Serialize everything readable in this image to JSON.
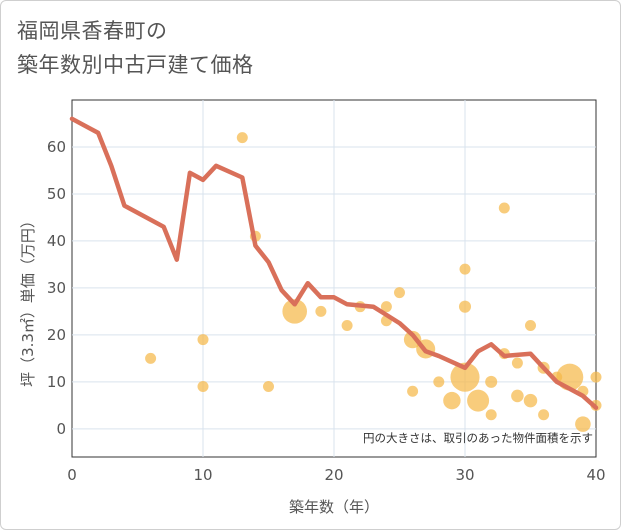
{
  "title_lines": [
    "福岡県香春町の",
    "築年数別中古戸建て価格"
  ],
  "chart_data": {
    "type": "scatter",
    "xlabel": "築年数（年）",
    "ylabel": "坪（3.3㎡）単価（万円）",
    "xlim": [
      0,
      40
    ],
    "ylim": [
      -6,
      70
    ],
    "xticks": [
      0,
      10,
      20,
      30,
      40
    ],
    "yticks": [
      0,
      10,
      20,
      30,
      40,
      50,
      60
    ],
    "note": "円の大きさは、取引のあった物件面積を示す",
    "colors": {
      "bubble": "#f5b84a",
      "line": "#d9705a",
      "grid": "#d9e3ee",
      "axis": "#333333"
    },
    "scatter": [
      {
        "x": 6,
        "y": 15,
        "s": 1
      },
      {
        "x": 10,
        "y": 19,
        "s": 1
      },
      {
        "x": 10,
        "y": 9,
        "s": 1
      },
      {
        "x": 13,
        "y": 62,
        "s": 1
      },
      {
        "x": 14,
        "y": 41,
        "s": 1
      },
      {
        "x": 15,
        "y": 9,
        "s": 1
      },
      {
        "x": 17,
        "y": 25,
        "s": 5
      },
      {
        "x": 19,
        "y": 25,
        "s": 1
      },
      {
        "x": 21,
        "y": 22,
        "s": 1
      },
      {
        "x": 22,
        "y": 26,
        "s": 1
      },
      {
        "x": 24,
        "y": 26,
        "s": 1
      },
      {
        "x": 24,
        "y": 23,
        "s": 1
      },
      {
        "x": 25,
        "y": 29,
        "s": 1
      },
      {
        "x": 26,
        "y": 19,
        "s": 2.5
      },
      {
        "x": 26,
        "y": 8,
        "s": 1
      },
      {
        "x": 27,
        "y": 17,
        "s": 3
      },
      {
        "x": 28,
        "y": 10,
        "s": 1
      },
      {
        "x": 29,
        "y": 6,
        "s": 2.5
      },
      {
        "x": 30,
        "y": 34,
        "s": 1
      },
      {
        "x": 30,
        "y": 26,
        "s": 1.2
      },
      {
        "x": 30,
        "y": 11,
        "s": 7
      },
      {
        "x": 31,
        "y": 6,
        "s": 4
      },
      {
        "x": 32,
        "y": 10,
        "s": 1.2
      },
      {
        "x": 32,
        "y": 3,
        "s": 1
      },
      {
        "x": 33,
        "y": 47,
        "s": 1
      },
      {
        "x": 33,
        "y": 16,
        "s": 1
      },
      {
        "x": 34,
        "y": 14,
        "s": 1
      },
      {
        "x": 34,
        "y": 7,
        "s": 1.3
      },
      {
        "x": 35,
        "y": 22,
        "s": 1
      },
      {
        "x": 35,
        "y": 6,
        "s": 1.5
      },
      {
        "x": 36,
        "y": 13,
        "s": 1.2
      },
      {
        "x": 36,
        "y": 3,
        "s": 1
      },
      {
        "x": 37,
        "y": 11,
        "s": 1
      },
      {
        "x": 38,
        "y": 11,
        "s": 6
      },
      {
        "x": 39,
        "y": 8,
        "s": 1
      },
      {
        "x": 39,
        "y": 1,
        "s": 2
      },
      {
        "x": 40,
        "y": 11,
        "s": 1
      },
      {
        "x": 40,
        "y": 5,
        "s": 1
      }
    ],
    "trend": [
      {
        "x": 0,
        "y": 66
      },
      {
        "x": 2,
        "y": 63
      },
      {
        "x": 3,
        "y": 56
      },
      {
        "x": 4,
        "y": 47.5
      },
      {
        "x": 7,
        "y": 43
      },
      {
        "x": 8,
        "y": 36
      },
      {
        "x": 9,
        "y": 54.5
      },
      {
        "x": 10,
        "y": 53
      },
      {
        "x": 11,
        "y": 56
      },
      {
        "x": 13,
        "y": 53.5
      },
      {
        "x": 14,
        "y": 39
      },
      {
        "x": 15,
        "y": 35.5
      },
      {
        "x": 16,
        "y": 29.5
      },
      {
        "x": 17,
        "y": 26.5
      },
      {
        "x": 18,
        "y": 31
      },
      {
        "x": 19,
        "y": 28
      },
      {
        "x": 20,
        "y": 28
      },
      {
        "x": 21,
        "y": 26.5
      },
      {
        "x": 23,
        "y": 26
      },
      {
        "x": 25,
        "y": 22.5
      },
      {
        "x": 26,
        "y": 20
      },
      {
        "x": 27,
        "y": 16.5
      },
      {
        "x": 28,
        "y": 15.5
      },
      {
        "x": 30,
        "y": 13
      },
      {
        "x": 31,
        "y": 16.5
      },
      {
        "x": 32,
        "y": 18
      },
      {
        "x": 33,
        "y": 15.5
      },
      {
        "x": 35,
        "y": 16
      },
      {
        "x": 36,
        "y": 13
      },
      {
        "x": 37,
        "y": 10
      },
      {
        "x": 39,
        "y": 7
      },
      {
        "x": 40,
        "y": 4.5
      }
    ]
  }
}
